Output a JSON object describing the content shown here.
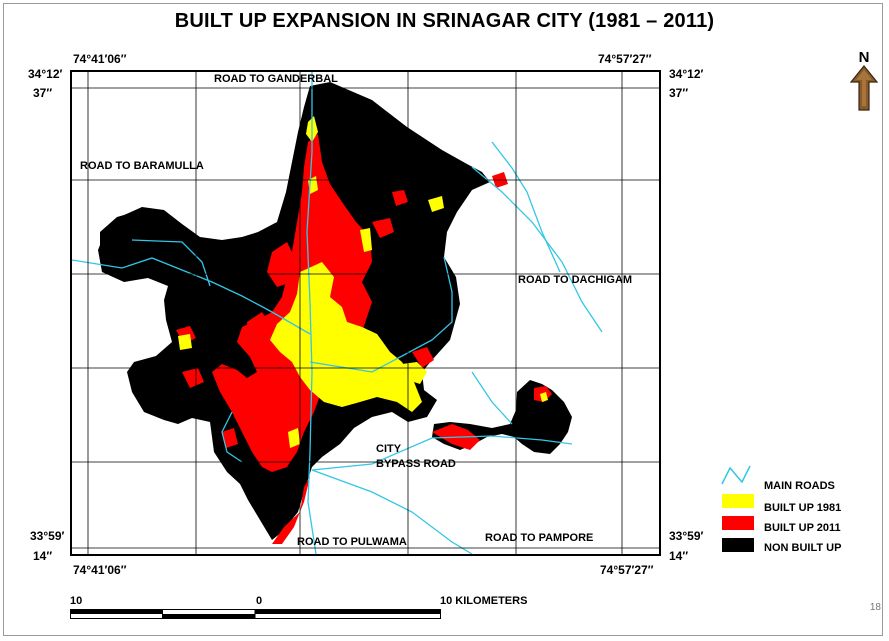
{
  "title": "BUILT UP EXPANSION IN SRINAGAR CITY (1981 – 2011)",
  "north_label": "N",
  "coordinates": {
    "top_left_lon": "74°41′06′′",
    "top_right_lon": "74°57′27′′",
    "bottom_left_lon": "74°41′06′′",
    "bottom_right_lon": "74°57′27′′",
    "top_lat_line1": "34°12′",
    "top_lat_line2": "37′′",
    "bottom_lat_line1": "33°59′",
    "bottom_lat_line2": "14′′"
  },
  "road_labels": {
    "ganderbal": "ROAD TO GANDERBAL",
    "baramulla": "ROAD TO BARAMULLA",
    "dachigam": "ROAD TO DACHIGAM",
    "city_bypass_line1": "CITY",
    "city_bypass_line2": "BYPASS ROAD",
    "pulwama": "ROAD TO PULWAMA",
    "pampore": "ROAD TO PAMPORE"
  },
  "legend": {
    "items": [
      {
        "label": "MAIN ROADS",
        "color": "#33c6e6",
        "kind": "line"
      },
      {
        "label": "BUILT UP 1981",
        "color": "#ffff00",
        "kind": "fill"
      },
      {
        "label": "BUILT UP 2011",
        "color": "#ff0000",
        "kind": "fill"
      },
      {
        "label": "NON BUILT UP",
        "color": "#000000",
        "kind": "fill"
      }
    ]
  },
  "scale_bar": {
    "left_label": "10",
    "mid_label": "0",
    "right_label": "10 KILOMETERS"
  },
  "page_number": "18",
  "colors": {
    "non_built_up": "#000000",
    "built_up_1981": "#ffff00",
    "built_up_2011": "#ff0000",
    "main_roads": "#33c6e6",
    "grid": "#000000",
    "north_arrow": "#8b5a2b"
  }
}
